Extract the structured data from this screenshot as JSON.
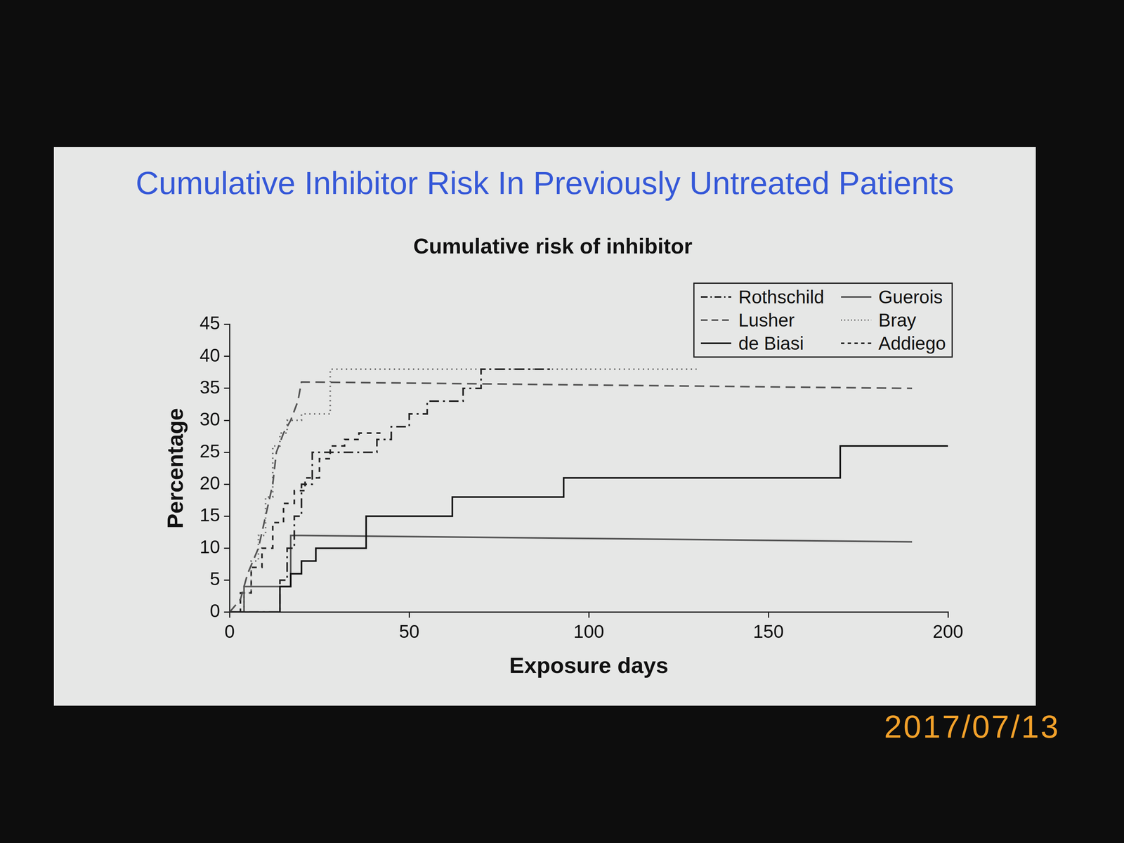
{
  "slide_title": "Cumulative Inhibitor Risk In Previously Untreated Patients",
  "timestamp": "2017/07/13",
  "chart_data": {
    "type": "line",
    "title": "Cumulative risk of inhibitor",
    "x_label": "Exposure days",
    "y_label": "Percentage",
    "xlim": [
      0,
      200
    ],
    "xticks": [
      0,
      50,
      100,
      150,
      200
    ],
    "ylim": [
      0,
      45
    ],
    "yticks": [
      0,
      5,
      10,
      15,
      20,
      25,
      30,
      35,
      40,
      45
    ],
    "grid": false,
    "legend": "upper right",
    "series": [
      {
        "name": "Rothschild",
        "type": "step",
        "color": "#222222",
        "line_style": "dashdot",
        "marker": "none",
        "x": [
          0,
          12,
          14,
          16,
          18,
          20,
          23,
          40,
          41,
          45,
          50,
          55,
          62,
          65,
          70,
          90
        ],
        "values": [
          0,
          0,
          5,
          10,
          15,
          20,
          25,
          25,
          27,
          29,
          31,
          33,
          33,
          35,
          38,
          38
        ]
      },
      {
        "name": "Lusher",
        "type": "line",
        "color": "#555555",
        "line_style": "dashed",
        "marker": "none",
        "x": [
          0,
          3,
          5,
          8,
          10,
          12,
          13,
          15,
          17,
          19,
          20,
          190
        ],
        "values": [
          0,
          2,
          6,
          10,
          15,
          20,
          25,
          28,
          30,
          33,
          36,
          35
        ]
      },
      {
        "name": "de Biasi",
        "type": "step",
        "color": "#111111",
        "line_style": "solid",
        "marker": "none",
        "x": [
          0,
          12,
          14,
          17,
          20,
          24,
          38,
          62,
          93,
          170,
          200
        ],
        "values": [
          0,
          0,
          4,
          6,
          8,
          10,
          15,
          18,
          21,
          26,
          26
        ]
      },
      {
        "name": "Guerois",
        "type": "line",
        "color": "#555555",
        "line_style": "solid",
        "marker": "none",
        "x": [
          0,
          4,
          4,
          17,
          17,
          20,
          190
        ],
        "values": [
          0,
          0,
          4,
          4,
          12,
          12,
          11
        ]
      },
      {
        "name": "Bray",
        "type": "step",
        "color": "#666666",
        "line_style": "dotted",
        "marker": "none",
        "x": [
          0,
          4,
          6,
          8,
          10,
          12,
          14,
          16,
          20,
          28,
          130
        ],
        "values": [
          0,
          3,
          8,
          12,
          18,
          26,
          28,
          30,
          31,
          38,
          38
        ]
      },
      {
        "name": "Addiego",
        "type": "step",
        "color": "#222222",
        "line_style": "short_dashed",
        "marker": "none",
        "x": [
          0,
          3,
          6,
          9,
          12,
          15,
          18,
          21,
          25,
          28,
          32,
          36,
          42
        ],
        "values": [
          0,
          3,
          7,
          10,
          14,
          17,
          19,
          21,
          24,
          26,
          27,
          28,
          28
        ]
      }
    ]
  }
}
